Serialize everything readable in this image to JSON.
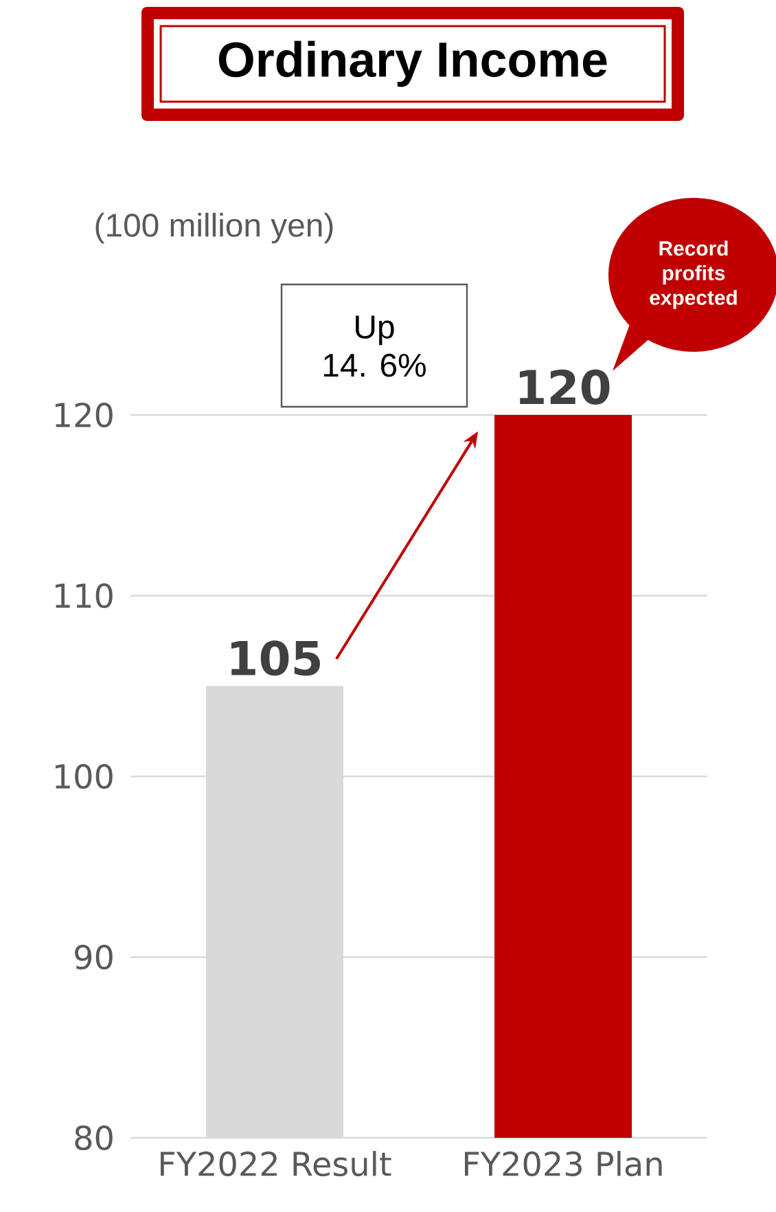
{
  "chart_data": {
    "type": "bar",
    "title": "Ordinary Income",
    "ylabel": "(100 million yen)",
    "categories": [
      "FY2022 Result",
      "FY2023 Plan"
    ],
    "values": [
      105,
      120
    ],
    "colors": [
      "#d9d9d9",
      "#c00000"
    ],
    "ylim": [
      80,
      120
    ],
    "yticks": [
      80,
      90,
      100,
      110,
      120
    ],
    "grid": "y",
    "data_labels": true,
    "annotations": [
      "Up\n14. 6%",
      "Record\nprofits\nexpected"
    ]
  }
}
